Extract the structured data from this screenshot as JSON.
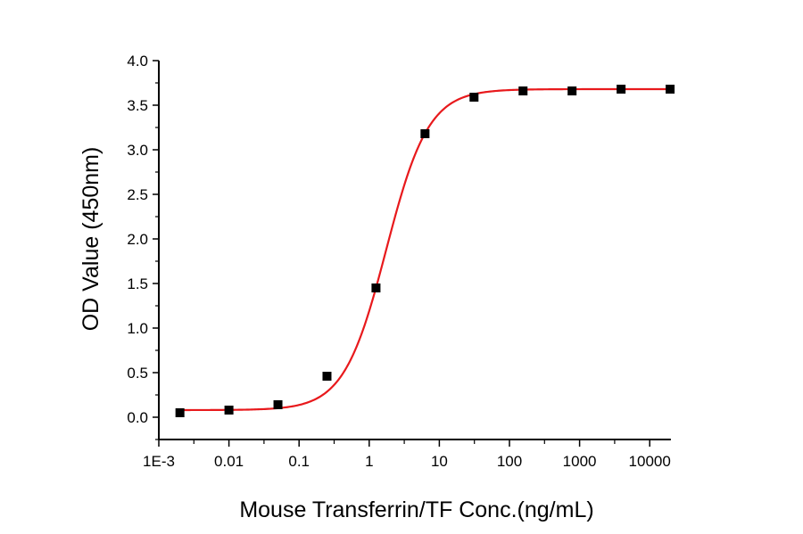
{
  "chart_data": {
    "type": "scatter",
    "title": "",
    "xlabel": "Mouse Transferrin/TF Conc.(ng/mL)",
    "ylabel": "OD Value (450nm)",
    "xscale": "log",
    "xlim": [
      0.001,
      20000
    ],
    "ylim": [
      -0.25,
      4.0
    ],
    "x_ticks": [
      0.001,
      0.01,
      0.1,
      1,
      10,
      100,
      1000,
      10000
    ],
    "x_tick_labels": [
      "1E-3",
      "0.01",
      "0.1",
      "1",
      "10",
      "100",
      "1000",
      "10000"
    ],
    "y_ticks": [
      0,
      0.5,
      1,
      1.5,
      2,
      2.5,
      3,
      3.5,
      4
    ],
    "y_tick_labels": [
      "0.0",
      "0.5",
      "1.0",
      "1.5",
      "2.0",
      "2.5",
      "3.0",
      "3.5",
      "4.0"
    ],
    "grid": false,
    "legend": "none",
    "series": [
      {
        "marker": "square",
        "color": "#000000",
        "x": [
          0.002,
          0.01,
          0.05,
          0.25,
          1.25,
          6.25,
          31.25,
          156.25,
          781.25,
          3906.25,
          19531.25
        ],
        "y": [
          0.05,
          0.08,
          0.14,
          0.46,
          1.45,
          3.18,
          3.59,
          3.66,
          3.66,
          3.68,
          3.68
        ]
      }
    ],
    "fit": {
      "type": "4PL",
      "color": "#e8191c",
      "bottom": 0.08,
      "top": 3.68,
      "ec50": 1.75,
      "hill": 1.44
    }
  }
}
